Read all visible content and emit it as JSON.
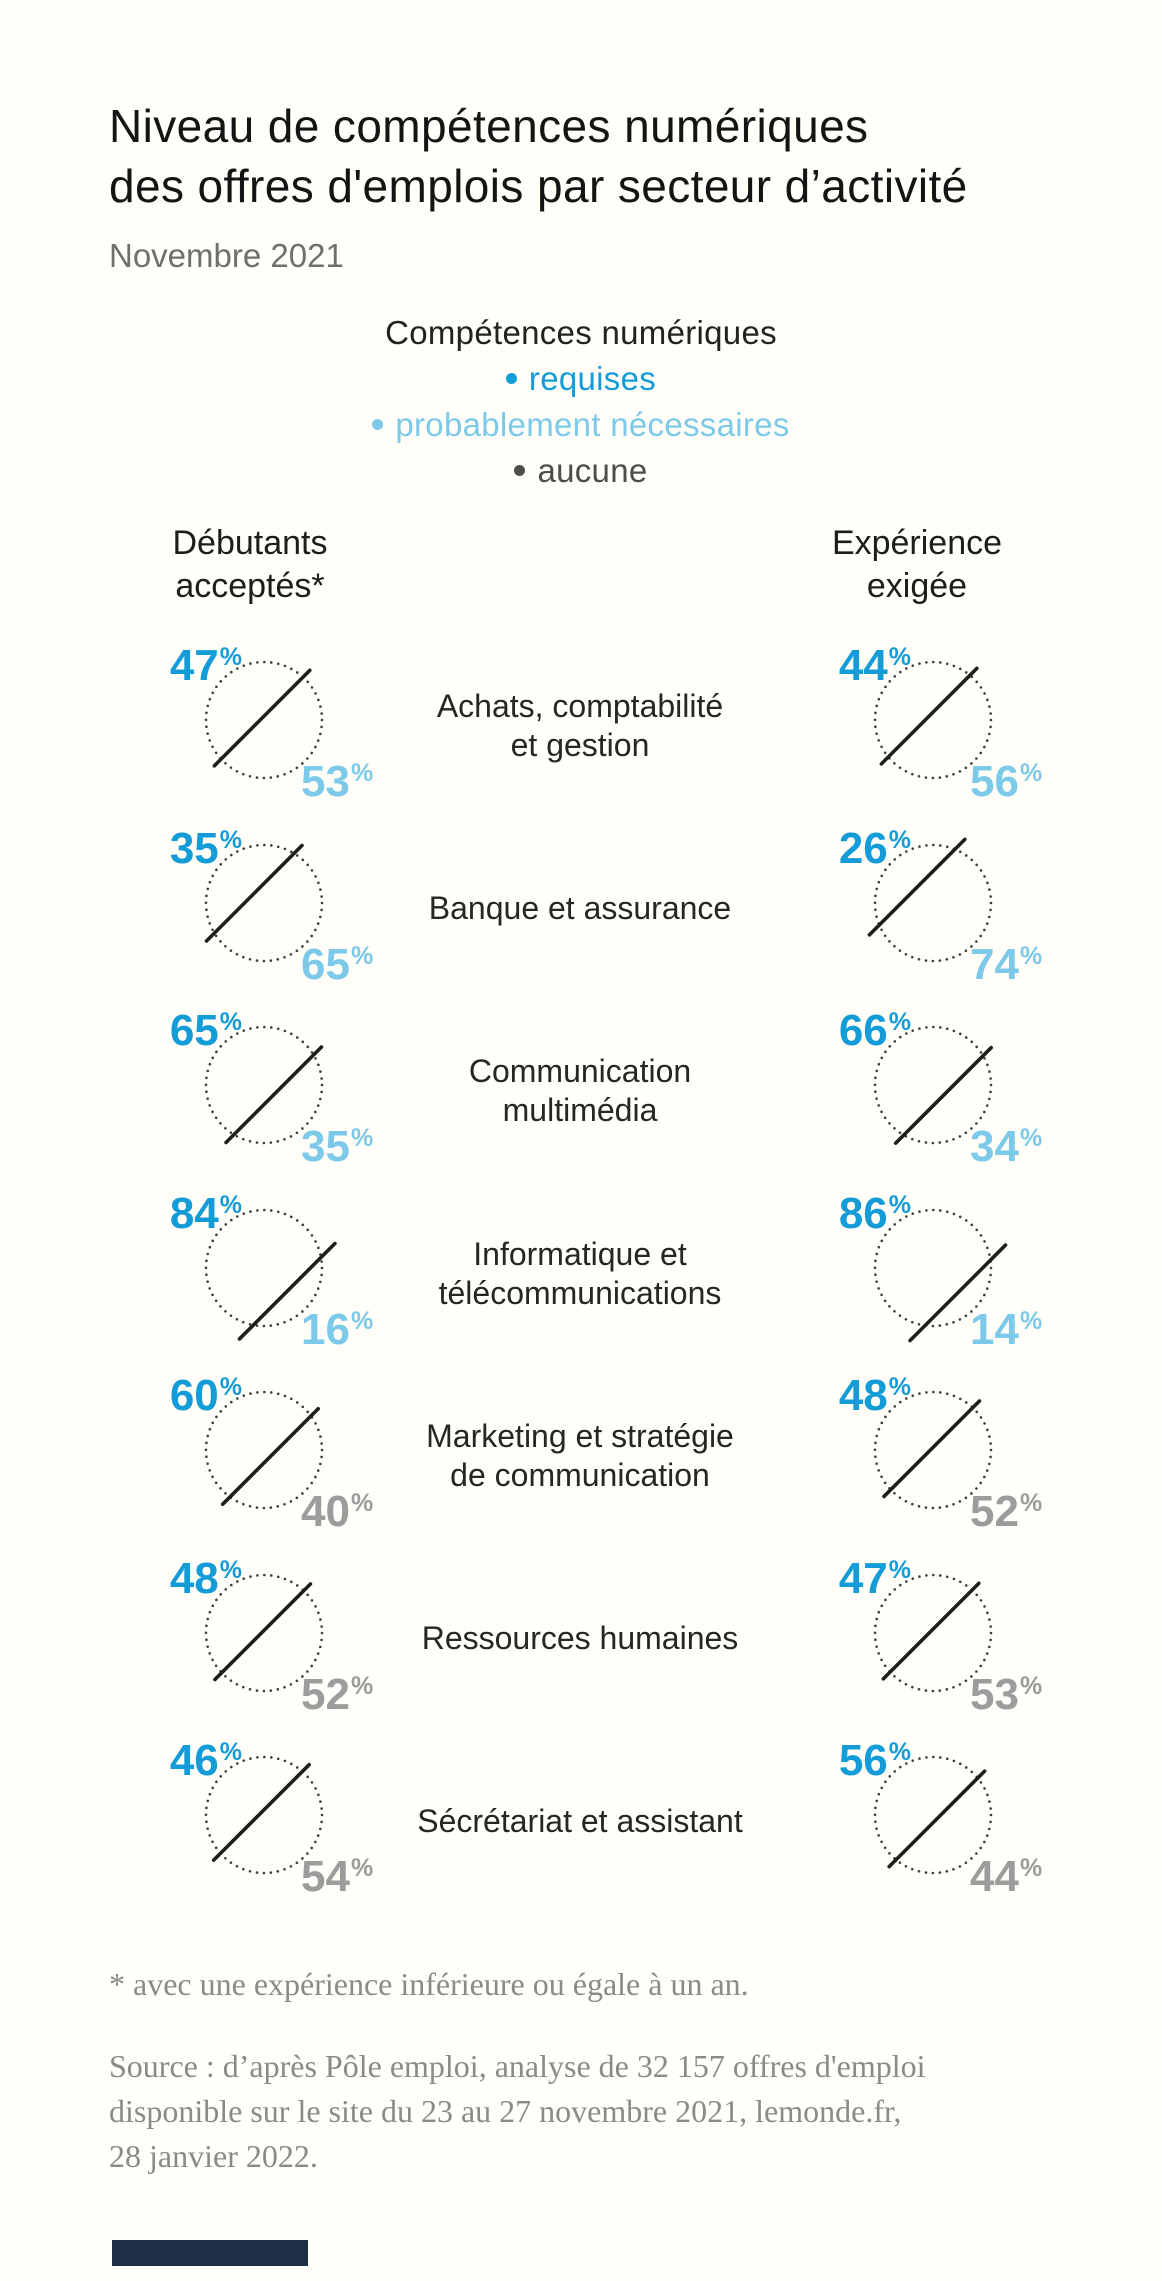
{
  "title": {
    "line1": "Niveau de compétences numériques",
    "line2": "des offres d'emplois par secteur d’activité"
  },
  "subtitle": "Novembre 2021",
  "legend": {
    "title": "Compétences numériques",
    "items": [
      {
        "label": "requises",
        "color_key": "requises_blue"
      },
      {
        "label": "probablement nécessaires",
        "color_key": "probable_light_blue"
      },
      {
        "label": "aucune",
        "color_key": "legend_aucune_text"
      }
    ]
  },
  "columns": {
    "left": {
      "line1": "Débutants",
      "line2": "acceptés*"
    },
    "right": {
      "line1": "Expérience",
      "line2": "exigée"
    }
  },
  "chart_data": {
    "type": "pie",
    "variant": "dotted-circle-split-by-diagonal-line",
    "unit": "%",
    "column_groups": [
      "Débutants acceptés*",
      "Expérience exigée"
    ],
    "series_labels": [
      "requises",
      "probablement nécessaires",
      "aucune"
    ],
    "rows": [
      {
        "sector": "Achats, comptabilité et gestion",
        "label_lines": [
          "Achats, comptabilité",
          "et gestion"
        ],
        "secondary_category": "probablement nécessaires",
        "debutants": {
          "requises": 47,
          "secondary": 53
        },
        "experience": {
          "requises": 44,
          "secondary": 56
        }
      },
      {
        "sector": "Banque et assurance",
        "label_lines": [
          "Banque et assurance"
        ],
        "secondary_category": "probablement nécessaires",
        "debutants": {
          "requises": 35,
          "secondary": 65
        },
        "experience": {
          "requises": 26,
          "secondary": 74
        }
      },
      {
        "sector": "Communication multimédia",
        "label_lines": [
          "Communication",
          "multimédia"
        ],
        "secondary_category": "probablement nécessaires",
        "debutants": {
          "requises": 65,
          "secondary": 35
        },
        "experience": {
          "requises": 66,
          "secondary": 34
        }
      },
      {
        "sector": "Informatique et télécommunications",
        "label_lines": [
          "Informatique et",
          "télécommunications"
        ],
        "secondary_category": "probablement nécessaires",
        "debutants": {
          "requises": 84,
          "secondary": 16
        },
        "experience": {
          "requises": 86,
          "secondary": 14
        }
      },
      {
        "sector": "Marketing et stratégie de communication",
        "label_lines": [
          "Marketing et stratégie",
          "de communication"
        ],
        "secondary_category": "aucune",
        "debutants": {
          "requises": 60,
          "secondary": 40
        },
        "experience": {
          "requises": 48,
          "secondary": 52
        }
      },
      {
        "sector": "Ressources humaines",
        "label_lines": [
          "Ressources humaines"
        ],
        "secondary_category": "aucune",
        "debutants": {
          "requises": 48,
          "secondary": 52
        },
        "experience": {
          "requises": 47,
          "secondary": 53
        }
      },
      {
        "sector": "Sécrétariat et assistant",
        "label_lines": [
          "Sécrétariat et assistant"
        ],
        "secondary_category": "aucune",
        "debutants": {
          "requises": 46,
          "secondary": 54
        },
        "experience": {
          "requises": 56,
          "secondary": 44
        }
      }
    ]
  },
  "footnote": "* avec une expérience inférieure ou égale à un an.",
  "source": [
    "Source : d’après Pôle emploi, analyse de 32 157 offres d'emploi",
    "disponible sur le site du 23 au 27 novembre 2021, lemonde.fr,",
    "28 janvier 2022."
  ],
  "colors": {
    "requises_blue": "#149CD8",
    "probable_light_blue": "#7DC9E9",
    "aucune_gray": "#9C9C9C",
    "legend_aucune_text": "#4D4D4D",
    "title_dark": "#141414",
    "subtitle_gray": "#6F6F6F",
    "source_gray": "#8C8A85",
    "dotted_circle": "#3C3C3C",
    "divider_line": "#1E1E1E",
    "background": "#FFFEF8",
    "brand_bar_navy": "#1C2F45"
  }
}
